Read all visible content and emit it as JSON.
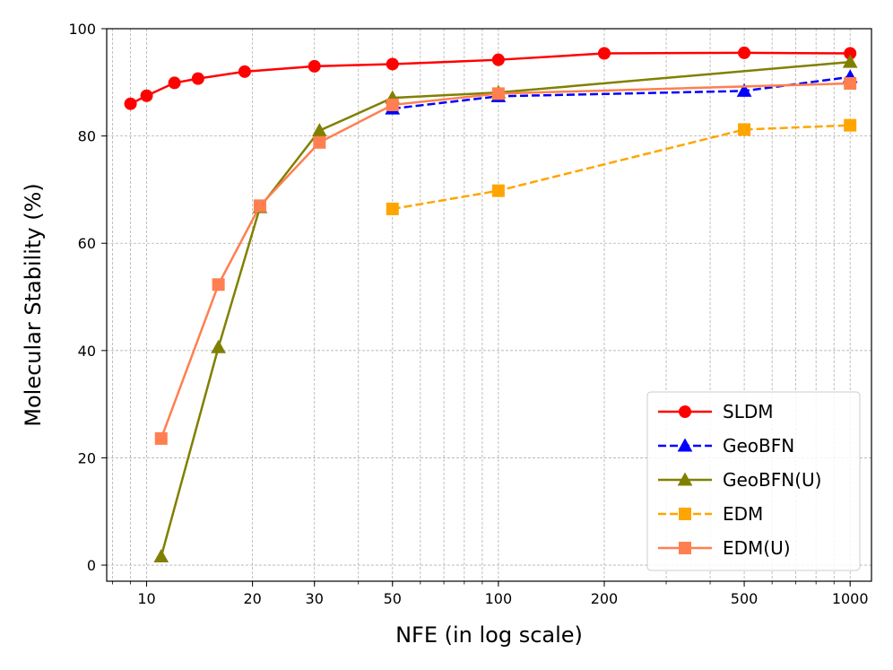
{
  "chart_data": {
    "type": "line",
    "xlabel": "NFE (in log scale)",
    "ylabel": "Molecular Stability (%)",
    "x_scale": "log",
    "xlim": [
      7.7,
      1150
    ],
    "ylim": [
      -3,
      100
    ],
    "x_ticks": [
      10,
      20,
      30,
      50,
      100,
      200,
      500,
      1000
    ],
    "x_tick_labels": [
      "10",
      "20",
      "30",
      "50",
      "100",
      "200",
      "500",
      "1000"
    ],
    "y_ticks": [
      0,
      20,
      40,
      60,
      80,
      100
    ],
    "y_tick_labels": [
      "0",
      "20",
      "40",
      "60",
      "80",
      "100"
    ],
    "grid": true,
    "legend_position": "lower right",
    "series": [
      {
        "name": "SLDM",
        "color": "#ff0000",
        "marker": "circle",
        "line_style": "solid",
        "x": [
          9,
          10,
          12,
          14,
          19,
          30,
          50,
          100,
          200,
          500,
          1000
        ],
        "y": [
          86.0,
          87.5,
          89.9,
          90.7,
          92.0,
          93.0,
          93.4,
          94.2,
          95.4,
          95.5,
          95.4
        ]
      },
      {
        "name": "GeoBFN",
        "color": "#0000ff",
        "marker": "triangle",
        "line_style": "dashed",
        "x": [
          50,
          100,
          500,
          1000
        ],
        "y": [
          85.1,
          87.4,
          88.4,
          91.0
        ]
      },
      {
        "name": "GeoBFN(U)",
        "color": "#808000",
        "marker": "triangle",
        "line_style": "solid",
        "x": [
          11,
          16,
          21,
          31,
          50,
          100,
          1000
        ],
        "y": [
          1.6,
          40.6,
          66.7,
          81.0,
          87.1,
          88.1,
          93.8
        ]
      },
      {
        "name": "EDM",
        "color": "#ffa500",
        "marker": "square",
        "line_style": "dashed",
        "x": [
          50,
          100,
          500,
          1000
        ],
        "y": [
          66.4,
          69.8,
          81.2,
          82.0
        ]
      },
      {
        "name": "EDM(U)",
        "color": "#ff7f50",
        "marker": "square",
        "line_style": "solid",
        "x": [
          11,
          16,
          21,
          31,
          50,
          100,
          1000
        ],
        "y": [
          23.6,
          52.3,
          67.0,
          78.8,
          85.8,
          87.9,
          89.8
        ]
      }
    ]
  }
}
